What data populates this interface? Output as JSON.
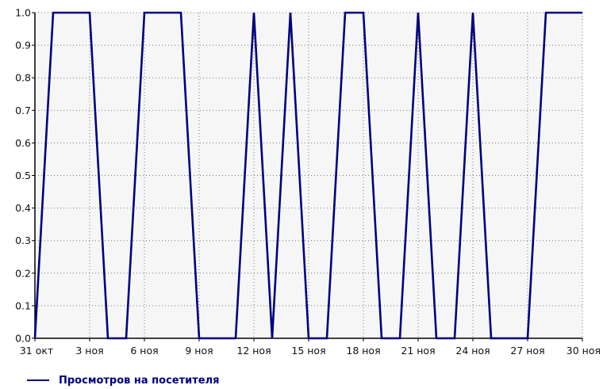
{
  "chart_data": {
    "type": "line",
    "x_tick_labels": [
      "31 окт",
      "3 ноя",
      "6 ноя",
      "9 ноя",
      "12 ноя",
      "15 ноя",
      "18 ноя",
      "21 ноя",
      "24 ноя",
      "27 ноя",
      "30 ноя"
    ],
    "y_tick_labels": [
      "0.0",
      "0.1",
      "0.2",
      "0.3",
      "0.4",
      "0.5",
      "0.6",
      "0.7",
      "0.8",
      "0.9",
      "1.0"
    ],
    "xlim": [
      "31 окт",
      "30 ноя"
    ],
    "ylim": [
      0,
      1
    ],
    "grid": true,
    "legend_position": "bottom-left",
    "series": [
      {
        "name": "Просмотров на посетителя",
        "color": "#00007f",
        "x": [
          "31 окт",
          "1 ноя",
          "2 ноя",
          "3 ноя",
          "4 ноя",
          "5 ноя",
          "6 ноя",
          "7 ноя",
          "8 ноя",
          "9 ноя",
          "10 ноя",
          "11 ноя",
          "12 ноя",
          "13 ноя",
          "14 ноя",
          "15 ноя",
          "16 ноя",
          "17 ноя",
          "18 ноя",
          "19 ноя",
          "20 ноя",
          "21 ноя",
          "22 ноя",
          "23 ноя",
          "24 ноя",
          "25 ноя",
          "26 ноя",
          "27 ноя",
          "28 ноя",
          "29 ноя",
          "30 ноя"
        ],
        "values": [
          0,
          1,
          1,
          1,
          0,
          0,
          1,
          1,
          1,
          0,
          0,
          0,
          1,
          0,
          1,
          0,
          0,
          1,
          1,
          0,
          0,
          1,
          0,
          0,
          1,
          0,
          0,
          0,
          1,
          1,
          1
        ]
      }
    ]
  }
}
